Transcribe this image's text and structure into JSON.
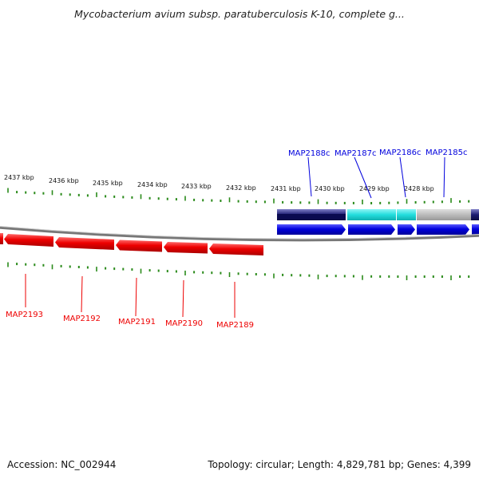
{
  "title": "Mycobacterium avium subsp. paratuberculosis K-10, complete g...",
  "footer": {
    "accession": "Accession: NC_002944",
    "topology": "Topology: circular; Length: 4,829,781 bp; Genes: 4,399"
  },
  "colors": {
    "forward_gene": "#ee0000",
    "reverse_gene": "#0000dd",
    "ticks": "#2a8a1a",
    "backbone": "#888888",
    "track_navy": "#1a1a70",
    "track_cyan": "#22dddd",
    "track_gray": "#bbbbbb"
  },
  "kbp_labels": [
    "2437 kbp",
    "2436 kbp",
    "2435 kbp",
    "2434 kbp",
    "2433 kbp",
    "2432 kbp",
    "2431 kbp",
    "2430 kbp",
    "2429 kbp",
    "2428 kbp"
  ],
  "genes_forward": [
    "MAP2193",
    "MAP2192",
    "MAP2191",
    "MAP2190",
    "MAP2189"
  ],
  "genes_reverse": [
    "MAP2188c",
    "MAP2187c",
    "MAP2186c",
    "MAP2185c"
  ]
}
